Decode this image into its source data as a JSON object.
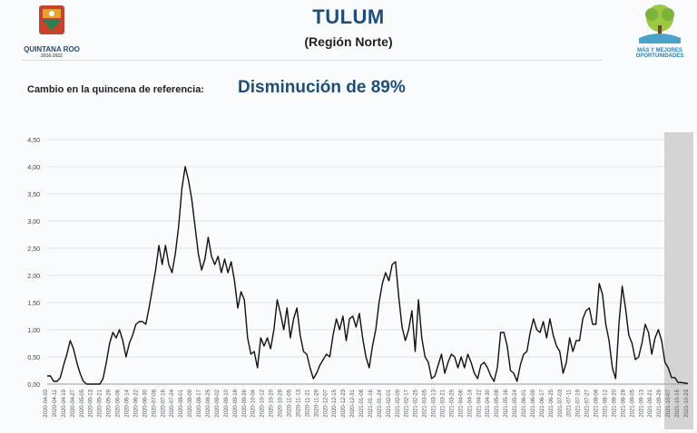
{
  "header": {
    "title": "TULUM",
    "subtitle": "(Región Norte)",
    "left_logo_text": "QUINTANA ROO",
    "left_logo_years": "2016-2022",
    "right_logo_text_1": "MÁS Y MEJORES",
    "right_logo_text_2": "OPORTUNIDADES"
  },
  "reference": {
    "label": "Cambio en la quincena de referencia:",
    "value": "Disminución de 89%"
  },
  "colors": {
    "title": "#1d4e7a",
    "line": "#111111",
    "grid": "#e2e2e2",
    "shade": "#cccccc"
  },
  "chart_data": {
    "type": "line",
    "title": "",
    "xlabel": "",
    "ylabel": "",
    "ylim": [
      0,
      4.5
    ],
    "yticks": [
      "0,00",
      "0,50",
      "1,00",
      "1,50",
      "2,00",
      "2,50",
      "3,00",
      "3,50",
      "4,00",
      "4,50"
    ],
    "grid": true,
    "highlighted_region": [
      "2021-09-27",
      "2021-10-26"
    ],
    "x_tick_labels": [
      "2020-04-03",
      "2020-04-11",
      "2020-04-19",
      "2020-04-27",
      "2020-05-05",
      "2020-05-13",
      "2020-05-21",
      "2020-05-29",
      "2020-06-06",
      "2020-06-14",
      "2020-06-22",
      "2020-06-30",
      "2020-07-08",
      "2020-07-16",
      "2020-07-24",
      "2020-08-01",
      "2020-08-09",
      "2020-08-17",
      "2020-08-25",
      "2020-09-02",
      "2020-09-10",
      "2020-09-18",
      "2020-09-26",
      "2020-10-04",
      "2020-10-12",
      "2020-10-20",
      "2020-10-28",
      "2020-11-05",
      "2020-11-13",
      "2020-11-21",
      "2020-11-29",
      "2020-12-07",
      "2020-12-15",
      "2020-12-23",
      "2020-12-31",
      "2021-01-08",
      "2021-01-16",
      "2021-01-24",
      "2021-02-01",
      "2021-02-09",
      "2021-02-17",
      "2021-02-25",
      "2021-03-05",
      "2021-03-13",
      "2021-03-21",
      "2021-03-29",
      "2021-04-06",
      "2021-04-14",
      "2021-04-22",
      "2021-04-30",
      "2021-05-08",
      "2021-05-16",
      "2021-05-24",
      "2021-06-01",
      "2021-06-09",
      "2021-06-17",
      "2021-06-25",
      "2021-07-03",
      "2021-07-11",
      "2021-07-19",
      "2021-07-27",
      "2021-08-04",
      "2021-08-12",
      "2021-08-20",
      "2021-08-28",
      "2021-09-05",
      "2021-09-13",
      "2021-09-21",
      "2021-09-29",
      "2021-10-07",
      "2021-10-15",
      "2021-10-23"
    ],
    "series": [
      {
        "values": [
          0.15,
          0.15,
          0.05,
          0.05,
          0.12,
          0.35,
          0.55,
          0.8,
          0.65,
          0.4,
          0.2,
          0.05,
          0.0,
          0.0,
          0.0,
          0.0,
          0.0,
          0.1,
          0.4,
          0.75,
          0.95,
          0.85,
          1.0,
          0.8,
          0.5,
          0.75,
          0.9,
          1.1,
          1.15,
          1.15,
          1.1,
          1.4,
          1.75,
          2.1,
          2.55,
          2.2,
          2.55,
          2.2,
          2.05,
          2.4,
          2.9,
          3.6,
          4.0,
          3.75,
          3.4,
          2.9,
          2.4,
          2.1,
          2.3,
          2.7,
          2.35,
          2.2,
          2.35,
          2.05,
          2.3,
          2.05,
          2.25,
          1.9,
          1.4,
          1.7,
          1.55,
          0.85,
          0.55,
          0.6,
          0.3,
          0.85,
          0.7,
          0.85,
          0.65,
          1.0,
          1.55,
          1.3,
          1.0,
          1.4,
          0.85,
          1.2,
          1.4,
          0.9,
          0.6,
          0.55,
          0.3,
          0.1,
          0.2,
          0.35,
          0.45,
          0.55,
          0.5,
          0.9,
          1.2,
          1.0,
          1.25,
          0.8,
          1.2,
          1.25,
          1.05,
          1.3,
          0.85,
          0.5,
          0.3,
          0.7,
          1.0,
          1.5,
          1.85,
          2.05,
          1.9,
          2.2,
          2.25,
          1.6,
          1.05,
          0.8,
          1.0,
          1.35,
          0.6,
          1.55,
          0.85,
          0.5,
          0.4,
          0.1,
          0.15,
          0.35,
          0.55,
          0.2,
          0.4,
          0.55,
          0.5,
          0.3,
          0.5,
          0.3,
          0.55,
          0.4,
          0.2,
          0.1,
          0.35,
          0.4,
          0.3,
          0.15,
          0.05,
          0.3,
          0.95,
          0.95,
          0.7,
          0.25,
          0.2,
          0.05,
          0.35,
          0.55,
          0.6,
          0.95,
          1.2,
          1.0,
          0.95,
          1.15,
          0.85,
          1.2,
          0.9,
          0.7,
          0.6,
          0.2,
          0.4,
          0.85,
          0.6,
          0.8,
          0.8,
          1.2,
          1.35,
          1.4,
          1.1,
          1.1,
          1.85,
          1.65,
          1.1,
          0.8,
          0.3,
          0.1,
          1.1,
          1.8,
          1.4,
          0.9,
          0.75,
          0.45,
          0.5,
          0.75,
          1.1,
          0.95,
          0.55,
          0.85,
          1.0,
          0.8,
          0.4,
          0.3,
          0.12,
          0.12,
          0.03,
          0.03,
          0.02,
          0.01
        ]
      }
    ]
  }
}
